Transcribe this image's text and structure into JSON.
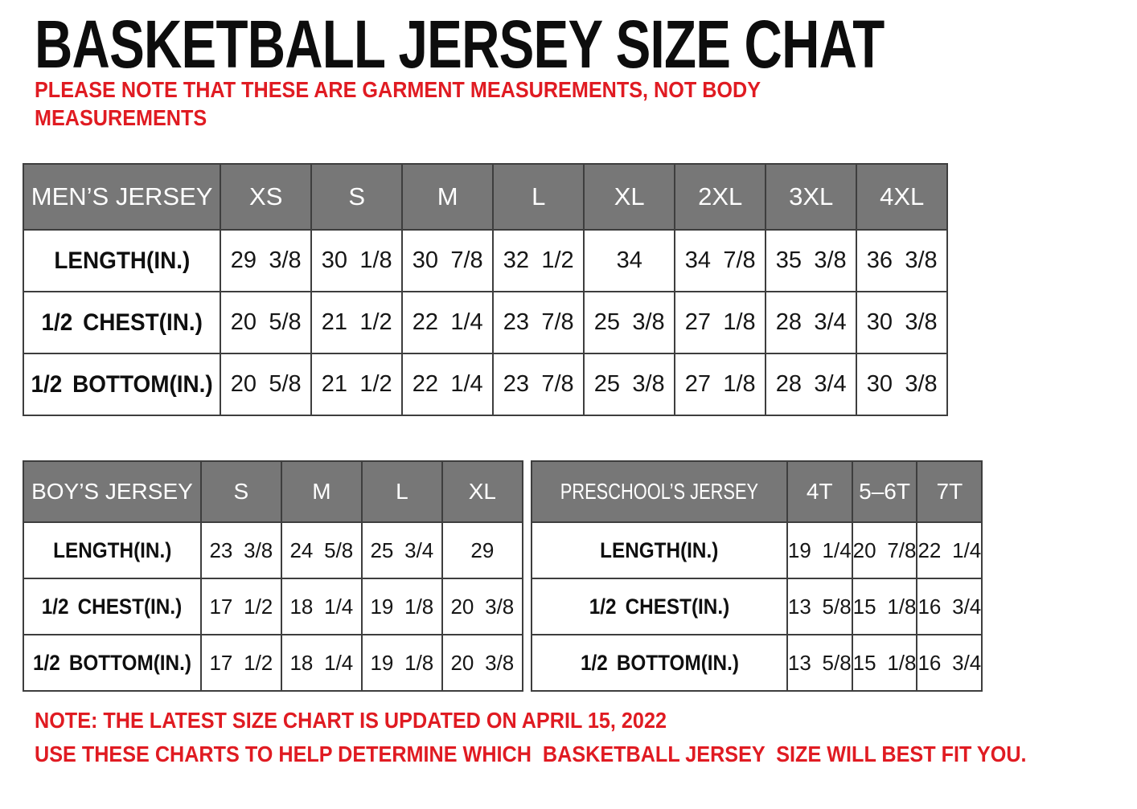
{
  "title": "BASKETBALL JERSEY SIZE CHAT",
  "top_note_lines": [
    "PLEASE NOTE THAT THESE ARE GARMENT MEASUREMENTS, NOT BODY",
    "MEASUREMENTS"
  ],
  "colors": {
    "note_red": "#e01b22",
    "header_gray": "#777777",
    "table_border": "#3e3e3e",
    "title_black": "#0d0d0d"
  },
  "tables": {
    "mens": {
      "name_header": "MEN’S JERSEY",
      "sizes": [
        "XS",
        "S",
        "M",
        "L",
        "XL",
        "2XL",
        "3XL",
        "4XL"
      ],
      "rows": [
        {
          "label": "LENGTH(IN.)",
          "values": [
            "29 3/8",
            "30 1/8",
            "30 7/8",
            "32 1/2",
            "34",
            "34 7/8",
            "35 3/8",
            "36 3/8"
          ]
        },
        {
          "label": "1/2 CHEST(IN.)",
          "values": [
            "20 5/8",
            "21 1/2",
            "22 1/4",
            "23 7/8",
            "25 3/8",
            "27 1/8",
            "28 3/4",
            "30 3/8"
          ]
        },
        {
          "label": "1/2 BOTTOM(IN.)",
          "values": [
            "20 5/8",
            "21 1/2",
            "22 1/4",
            "23 7/8",
            "25 3/8",
            "27 1/8",
            "28 3/4",
            "30 3/8"
          ]
        }
      ]
    },
    "boys": {
      "name_header": "BOY’S JERSEY",
      "sizes": [
        "S",
        "M",
        "L",
        "XL"
      ],
      "rows": [
        {
          "label": "LENGTH(IN.)",
          "values": [
            "23 3/8",
            "24 5/8",
            "25 3/4",
            "29"
          ]
        },
        {
          "label": "1/2 CHEST(IN.)",
          "values": [
            "17 1/2",
            "18 1/4",
            "19 1/8",
            "20 3/8"
          ]
        },
        {
          "label": "1/2 BOTTOM(IN.)",
          "values": [
            "17 1/2",
            "18 1/4",
            "19 1/8",
            "20 3/8"
          ]
        }
      ]
    },
    "preschool": {
      "name_header": "PRESCHOOL’S JERSEY",
      "sizes": [
        "4T",
        "5–6T",
        "7T"
      ],
      "rows": [
        {
          "label": "LENGTH(IN.)",
          "values": [
            "19 1/4",
            "20 7/8",
            "22 1/4"
          ]
        },
        {
          "label": "1/2 CHEST(IN.)",
          "values": [
            "13 5/8",
            "15 1/8",
            "16 3/4"
          ]
        },
        {
          "label": "1/2 BOTTOM(IN.)",
          "values": [
            "13 5/8",
            "15 1/8",
            "16 3/4"
          ]
        }
      ]
    }
  },
  "bottom_notes": [
    "NOTE: THE LATEST SIZE CHART IS UPDATED ON APRIL 15, 2022",
    "USE THESE CHARTS TO HELP DETERMINE WHICH  BASKETBALL JERSEY  SIZE WILL BEST FIT YOU."
  ]
}
